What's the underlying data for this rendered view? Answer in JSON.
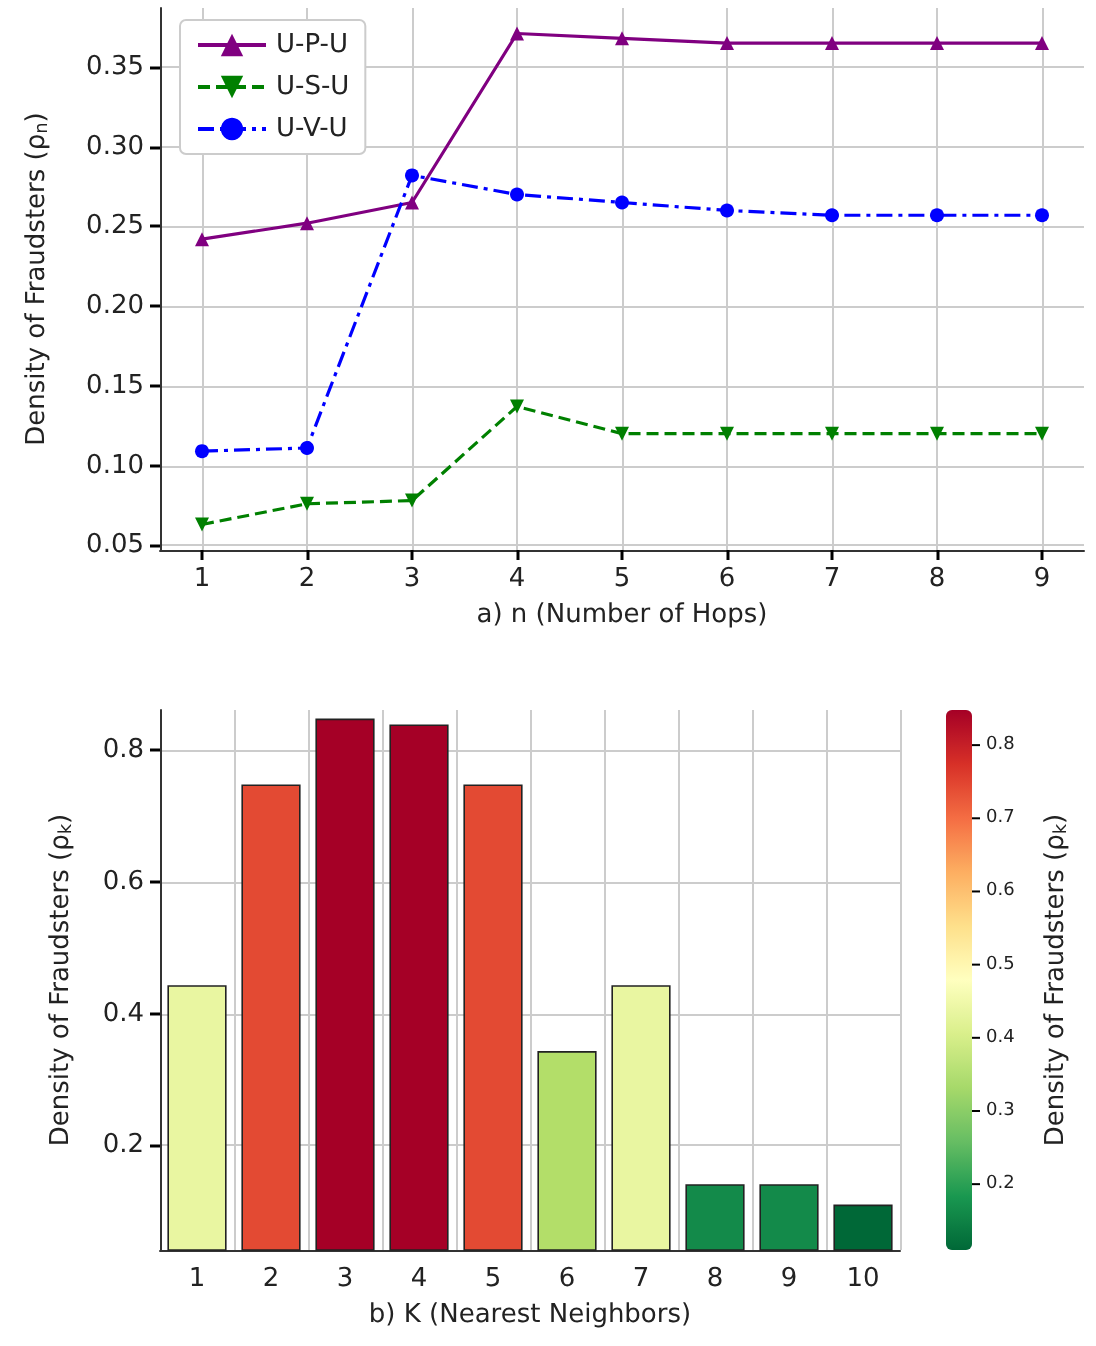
{
  "chart_data": [
    {
      "type": "line",
      "xlabel": "a) n (Number of Hops)",
      "ylabel": "Density of Fraudsters (ρ$_{n}$)",
      "x": [
        1,
        2,
        3,
        4,
        5,
        6,
        7,
        8,
        9
      ],
      "series": [
        {
          "name": "U-P-U",
          "color": "#800080",
          "marker": "triangle",
          "line_style": "solid",
          "values": [
            0.242,
            0.252,
            0.265,
            0.371,
            0.368,
            0.365,
            0.365,
            0.365,
            0.365
          ]
        },
        {
          "name": "U-S-U",
          "color": "#008000",
          "marker": "triangle-down",
          "line_style": "dashed",
          "values": [
            0.063,
            0.076,
            0.078,
            0.137,
            0.12,
            0.12,
            0.12,
            0.12,
            0.12
          ]
        },
        {
          "name": "U-V-U",
          "color": "#0000ff",
          "marker": "circle",
          "line_style": "dashdot",
          "values": [
            0.109,
            0.111,
            0.282,
            0.27,
            0.265,
            0.26,
            0.257,
            0.257,
            0.257
          ]
        }
      ],
      "xlim": [
        0.6,
        9.4
      ],
      "xticks": [
        1,
        2,
        3,
        4,
        5,
        6,
        7,
        8,
        9
      ],
      "ylim": [
        0.047,
        0.387
      ],
      "yticks": [
        {
          "value": 0.05,
          "label": "0.05"
        },
        {
          "value": 0.1,
          "label": "0.10"
        },
        {
          "value": 0.15,
          "label": "0.15"
        },
        {
          "value": 0.2,
          "label": "0.20"
        },
        {
          "value": 0.25,
          "label": "0.25"
        },
        {
          "value": 0.3,
          "label": "0.30"
        },
        {
          "value": 0.35,
          "label": "0.35"
        }
      ],
      "grid": true,
      "legend": "top left"
    },
    {
      "type": "bar",
      "xlabel": "b) K (Nearest Neighbors)",
      "ylabel": "Density of Fraudsters (ρ$_{k}$)",
      "clabel": "Density of Fraudsters (ρ$_{k}$)",
      "categories": [
        "1",
        "2",
        "3",
        "4",
        "5",
        "6",
        "7",
        "8",
        "9",
        "10"
      ],
      "values": [
        0.443,
        0.748,
        0.848,
        0.839,
        0.748,
        0.343,
        0.443,
        0.141,
        0.141,
        0.11
      ],
      "colors": [
        "#e9f6a1",
        "#e34a33",
        "#a50026",
        "#a50026",
        "#e34a33",
        "#b3de69",
        "#e9f6a1",
        "#138a4a",
        "#138a4a",
        "#006837"
      ],
      "ylim": [
        0.041,
        0.861
      ],
      "yticks": [
        0.2,
        0.4,
        0.6,
        0.8
      ],
      "clim": [
        0.11,
        0.848
      ],
      "cticks": [
        0.2,
        0.3,
        0.4,
        0.5,
        0.6,
        0.7,
        0.8
      ],
      "grid": true
    }
  ]
}
